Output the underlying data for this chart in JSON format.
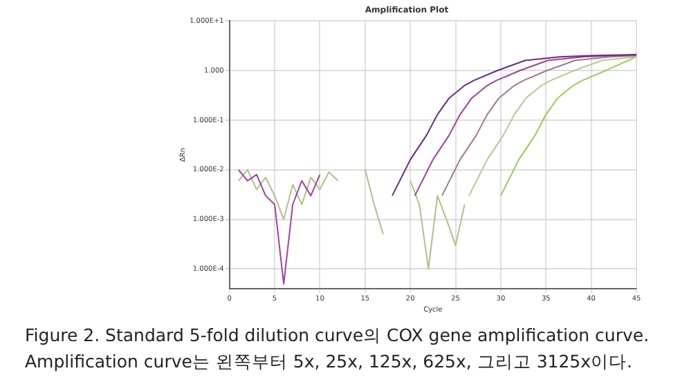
{
  "chart_data": {
    "type": "line",
    "title": "Amplification Plot",
    "xlabel": "Cycle",
    "ylabel": "ΔRn",
    "annotations": [
      "Figure 2. Standard 5-fold dilution curve의 COX gene amplification curve.",
      "Amplification curve는 왼쪽부터 5x, 25x, 125x, 625x, 그리고 3125x이다."
    ],
    "log": "y",
    "grid": true,
    "legend": false,
    "marker": "none",
    "line_style": "solid",
    "xlim": [
      0,
      45
    ],
    "xticks": [
      0,
      5,
      10,
      15,
      20,
      25,
      30,
      35,
      40,
      45
    ],
    "ylim": [
      4e-05,
      10
    ],
    "yticks": [
      {
        "value": 0.0001,
        "label": "1.000E-4"
      },
      {
        "value": 0.001,
        "label": "1.000E-3"
      },
      {
        "value": 0.01,
        "label": "1.000E-2"
      },
      {
        "value": 0.1,
        "label": "1.000E-1"
      },
      {
        "value": 1,
        "label": "1.000"
      },
      {
        "value": 10,
        "label": "1.000E+1"
      }
    ],
    "series": [
      {
        "color": "#6a2a80",
        "x": [
          18,
          20,
          21.8,
          23,
          24.3,
          26,
          27,
          29.6,
          32.7,
          36.6,
          40,
          45
        ],
        "values": [
          0.003,
          0.016,
          0.05,
          0.13,
          0.28,
          0.5,
          0.63,
          1.0,
          1.6,
          1.9,
          2.0,
          2.1
        ]
      },
      {
        "color": "#a0409a",
        "x": [
          20.5,
          22.5,
          24.3,
          25.5,
          26.8,
          28.5,
          29.5,
          32.1,
          35.2,
          39.1,
          42.5,
          45
        ],
        "values": [
          0.003,
          0.016,
          0.05,
          0.13,
          0.28,
          0.5,
          0.63,
          1.0,
          1.6,
          1.9,
          2.0,
          2.05
        ]
      },
      {
        "color": "#a07898",
        "x": [
          23.5,
          25.5,
          27.3,
          28.5,
          29.8,
          31.5,
          32.5,
          35.1,
          38.2,
          42.1,
          45
        ],
        "values": [
          0.003,
          0.016,
          0.05,
          0.13,
          0.28,
          0.5,
          0.63,
          1.0,
          1.6,
          1.9,
          2.0
        ]
      },
      {
        "color": "#b8c890",
        "x": [
          26.5,
          28.5,
          30.3,
          31.5,
          32.8,
          34.5,
          35.5,
          38.1,
          41.2,
          45
        ],
        "values": [
          0.003,
          0.016,
          0.05,
          0.13,
          0.28,
          0.5,
          0.63,
          1.0,
          1.6,
          1.9
        ]
      },
      {
        "color": "#99cc55",
        "x": [
          30,
          32,
          33.8,
          35,
          36.3,
          38,
          39,
          41.6,
          45
        ],
        "values": [
          0.003,
          0.016,
          0.05,
          0.13,
          0.28,
          0.5,
          0.63,
          1.0,
          1.9
        ]
      },
      {
        "color": "#a040a0",
        "x": [
          1,
          2,
          3,
          4,
          5,
          6,
          7,
          8,
          9,
          10
        ],
        "values": [
          0.01,
          0.006,
          0.008,
          0.003,
          0.002,
          5e-05,
          0.002,
          0.006,
          0.003,
          0.008
        ]
      },
      {
        "color": "#b0c088",
        "x": [
          1,
          2,
          3,
          4,
          5,
          6,
          7,
          8,
          9,
          10,
          11,
          12
        ],
        "values": [
          0.006,
          0.01,
          0.004,
          0.007,
          0.003,
          0.001,
          0.005,
          0.002,
          0.007,
          0.004,
          0.009,
          0.006
        ]
      },
      {
        "color": "#b0c088",
        "x": [
          20,
          21,
          22,
          23,
          24,
          25,
          26
        ],
        "values": [
          0.006,
          0.002,
          0.0001,
          0.003,
          0.001,
          0.0003,
          0.002
        ]
      },
      {
        "color": "#b0c088",
        "x": [
          15,
          16,
          17
        ],
        "values": [
          0.01,
          0.002,
          0.0005
        ]
      }
    ]
  }
}
